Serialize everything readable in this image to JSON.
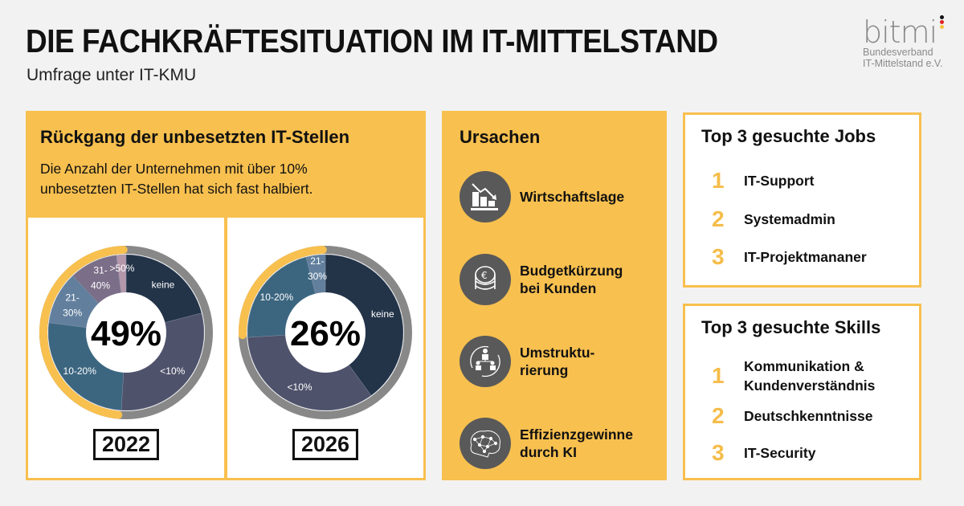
{
  "header": {
    "title": "DIE FACHKRÄFTESITUATION IM IT-MITTELSTAND",
    "subtitle": "Umfrage unter IT-KMU"
  },
  "logo": {
    "mark": "bitmi",
    "line1": "Bundesverband",
    "line2": "IT-Mittelstand e.V."
  },
  "left": {
    "title": "Rückgang der unbesetzten IT-Stellen",
    "text_line1": "Die Anzahl der Unternehmen mit über 10%",
    "text_line2": "unbesetzten IT-Stellen hat sich fast halbiert."
  },
  "colors": {
    "accent": "#f8c04f",
    "ring": "#888888",
    "keine": "#233449",
    "lt10": "#4f526b",
    "10-20": "#3c6680",
    "21-30": "#62809e",
    "31-40": "#7b6e88",
    "gt50": "#b497ab"
  },
  "chart_data": [
    {
      "type": "pie",
      "title": "2022",
      "center_label": "49%",
      "categories": [
        "keine",
        "<10%",
        "10-20%",
        "21-30%",
        "31-40%",
        ">50%"
      ],
      "values": [
        21,
        30,
        26,
        11,
        10,
        2
      ],
      "highlighted": [
        "10-20%",
        "21-30%",
        "31-40%",
        ">50%"
      ]
    },
    {
      "type": "pie",
      "title": "2026",
      "center_label": "26%",
      "categories": [
        "keine",
        "<10%",
        "10-20%",
        "21-30%"
      ],
      "values": [
        40,
        34,
        22,
        4
      ],
      "highlighted": [
        "10-20%",
        "21-30%"
      ]
    }
  ],
  "causes": {
    "title": "Ursachen",
    "items": [
      {
        "icon": "chart-decline-icon",
        "line1": "Wirtschaftslage",
        "line2": ""
      },
      {
        "icon": "euro-coins-icon",
        "line1": "Budgetkürzung",
        "line2": "bei Kunden"
      },
      {
        "icon": "restructuring-icon",
        "line1": "Umstruktu-",
        "line2": "rierung"
      },
      {
        "icon": "ai-brain-icon",
        "line1": "Effizienzgewinne",
        "line2": "durch KI"
      }
    ]
  },
  "jobs": {
    "title": "Top 3 gesuchte Jobs",
    "items": [
      {
        "n": "1",
        "text": "IT-Support"
      },
      {
        "n": "2",
        "text": "Systemadmin"
      },
      {
        "n": "3",
        "text": "IT-Projektmananer"
      }
    ]
  },
  "skills": {
    "title": "Top 3 gesuchte Skills",
    "items": [
      {
        "n": "1",
        "line1": "Kommunikation &",
        "line2": "Kundenverständnis"
      },
      {
        "n": "2",
        "line1": "Deutschkenntnisse",
        "line2": ""
      },
      {
        "n": "3",
        "line1": "IT-Security",
        "line2": ""
      }
    ]
  }
}
